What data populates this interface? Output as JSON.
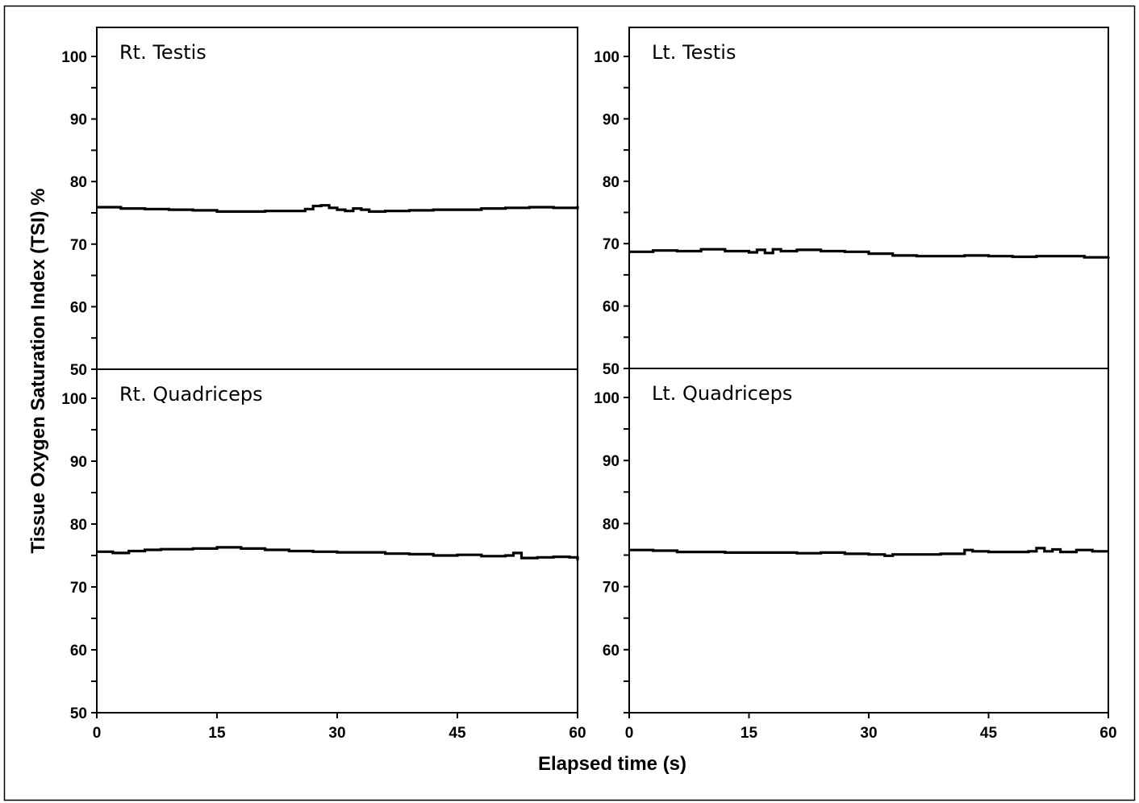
{
  "chart_data": [
    {
      "type": "line",
      "title": "Rt. Testis",
      "xlabel": "Elapsed time (s)",
      "ylabel": "Tissue Oxygen Saturation Index (TSI)  %",
      "xlim": [
        0,
        60
      ],
      "ylim": [
        50,
        100
      ],
      "xticks": [
        "0",
        "15",
        "30",
        "45",
        "60"
      ],
      "yticks": [
        "50",
        "60",
        "70",
        "80",
        "90",
        "100"
      ],
      "x": [
        0,
        3,
        6,
        9,
        12,
        15,
        18,
        21,
        24,
        26,
        27,
        28,
        29,
        30,
        31,
        32,
        33,
        34,
        36,
        39,
        42,
        45,
        48,
        51,
        54,
        57,
        59,
        60
      ],
      "y": [
        75.9,
        75.7,
        75.6,
        75.5,
        75.4,
        75.2,
        75.2,
        75.3,
        75.3,
        75.6,
        76.1,
        76.2,
        75.8,
        75.5,
        75.3,
        75.7,
        75.5,
        75.2,
        75.3,
        75.4,
        75.5,
        75.5,
        75.7,
        75.8,
        75.9,
        75.8,
        75.8,
        76.1
      ]
    },
    {
      "type": "line",
      "title": "Lt. Testis",
      "xlabel": "Elapsed time (s)",
      "xlim": [
        0,
        60
      ],
      "ylim": [
        50,
        100
      ],
      "xticks": [
        "0",
        "15",
        "30",
        "45",
        "60"
      ],
      "yticks": [
        "50",
        "60",
        "70",
        "80",
        "90",
        "100"
      ],
      "x": [
        0,
        3,
        6,
        9,
        12,
        15,
        16,
        17,
        18,
        19,
        21,
        24,
        27,
        30,
        33,
        36,
        39,
        42,
        45,
        48,
        51,
        54,
        57,
        60
      ],
      "y": [
        68.7,
        68.9,
        68.8,
        69.1,
        68.8,
        68.6,
        69.0,
        68.5,
        69.1,
        68.8,
        69.0,
        68.8,
        68.7,
        68.4,
        68.1,
        68.0,
        68.0,
        68.1,
        68.0,
        67.9,
        68.0,
        68.0,
        67.8,
        67.9
      ]
    },
    {
      "type": "line",
      "title": "Rt. Quadriceps",
      "xlabel": "Elapsed time (s)",
      "xlim": [
        0,
        60
      ],
      "ylim": [
        50,
        100
      ],
      "xticks": [
        "0",
        "15",
        "30",
        "45",
        "60"
      ],
      "yticks": [
        "50",
        "60",
        "70",
        "80",
        "90",
        "100"
      ],
      "x": [
        0,
        2,
        4,
        6,
        8,
        10,
        12,
        15,
        18,
        21,
        24,
        27,
        30,
        33,
        36,
        39,
        42,
        45,
        48,
        51,
        52,
        53,
        55,
        57,
        59,
        60
      ],
      "y": [
        75.6,
        75.4,
        75.7,
        75.9,
        76.0,
        76.0,
        76.1,
        76.3,
        76.1,
        75.9,
        75.7,
        75.6,
        75.5,
        75.5,
        75.3,
        75.2,
        75.0,
        75.1,
        74.9,
        75.0,
        75.4,
        74.6,
        74.7,
        74.8,
        74.7,
        74.2
      ]
    },
    {
      "type": "line",
      "title": "Lt. Quadriceps",
      "xlabel": "Elapsed time (s)",
      "xlim": [
        0,
        60
      ],
      "ylim": [
        50,
        100
      ],
      "xticks": [
        "0",
        "15",
        "30",
        "45",
        "60"
      ],
      "yticks": [
        "60",
        "70",
        "80",
        "90",
        "100"
      ],
      "x": [
        0,
        3,
        6,
        9,
        12,
        15,
        18,
        21,
        24,
        27,
        30,
        32,
        33,
        36,
        39,
        42,
        43,
        45,
        48,
        50,
        51,
        52,
        53,
        54,
        56,
        58,
        60
      ],
      "y": [
        75.8,
        75.7,
        75.5,
        75.5,
        75.4,
        75.4,
        75.4,
        75.3,
        75.4,
        75.2,
        75.1,
        74.9,
        75.1,
        75.1,
        75.2,
        75.8,
        75.6,
        75.5,
        75.5,
        75.6,
        76.1,
        75.6,
        75.9,
        75.5,
        75.8,
        75.6,
        75.6
      ]
    }
  ]
}
